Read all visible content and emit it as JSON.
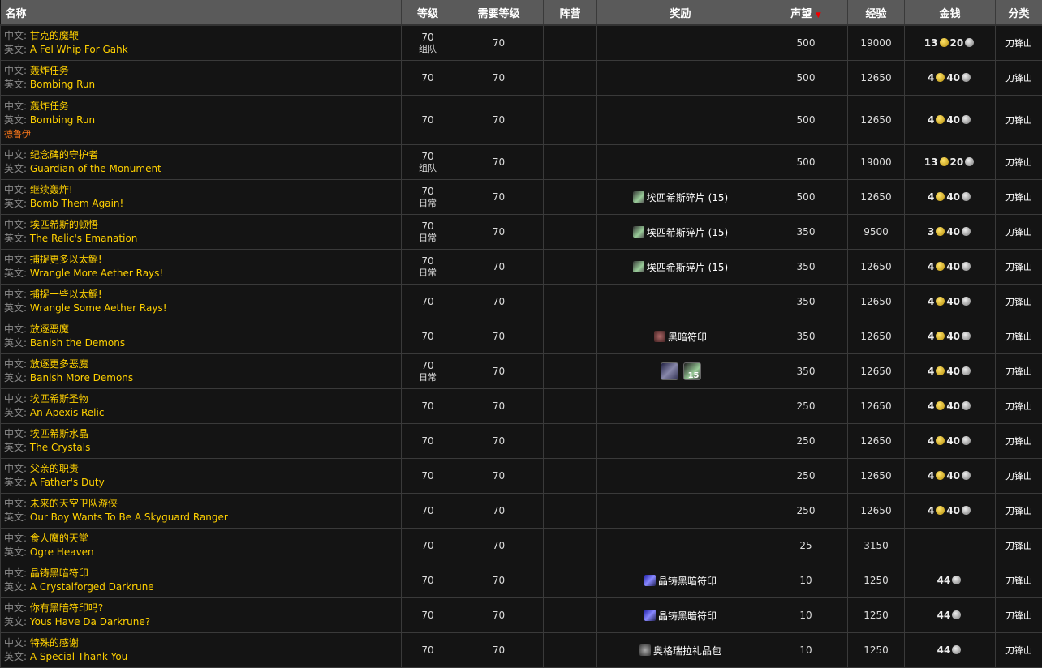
{
  "header": {
    "name": "名称",
    "level": "等级",
    "req_level": "需要等级",
    "faction": "阵营",
    "reward": "奖励",
    "reputation": "声望",
    "sort_icon": "▼",
    "xp": "经验",
    "money": "金钱",
    "category": "分类"
  },
  "labels": {
    "cn": "中文:",
    "en": "英文:"
  },
  "rows": [
    {
      "cn": "甘克的魔鞭",
      "en": "A Fel Whip For Gahk",
      "level": "70",
      "tag": "组队",
      "req": "70",
      "reward": "",
      "rep": "500",
      "xp": "19000",
      "gold": "13",
      "silver": "20",
      "cat": "刀锋山"
    },
    {
      "cn": "轰炸任务",
      "en": "Bombing Run",
      "level": "70",
      "tag": "",
      "req": "70",
      "reward": "",
      "rep": "500",
      "xp": "12650",
      "gold": "4",
      "silver": "40",
      "cat": "刀锋山"
    },
    {
      "cn": "轰炸任务",
      "en": "Bombing Run",
      "faction": "德鲁伊",
      "level": "70",
      "tag": "",
      "req": "70",
      "reward": "",
      "rep": "500",
      "xp": "12650",
      "gold": "4",
      "silver": "40",
      "cat": "刀锋山"
    },
    {
      "cn": "纪念碑的守护者",
      "en": "Guardian of the Monument",
      "level": "70",
      "tag": "组队",
      "req": "70",
      "reward": "",
      "rep": "500",
      "xp": "19000",
      "gold": "13",
      "silver": "20",
      "cat": "刀锋山"
    },
    {
      "cn": "继续轰炸!",
      "en": "Bomb Them Again!",
      "level": "70",
      "tag": "日常",
      "req": "70",
      "reward": "埃匹希斯碎片 (15)",
      "reward_icon": "shard",
      "rep": "500",
      "xp": "12650",
      "gold": "4",
      "silver": "40",
      "cat": "刀锋山"
    },
    {
      "cn": "埃匹希斯的顿悟",
      "en": "The Relic's Emanation",
      "level": "70",
      "tag": "日常",
      "req": "70",
      "reward": "埃匹希斯碎片 (15)",
      "reward_icon": "shard",
      "rep": "350",
      "xp": "9500",
      "gold": "3",
      "silver": "40",
      "cat": "刀锋山"
    },
    {
      "cn": "捕捉更多以太鳐!",
      "en": "Wrangle More Aether Rays!",
      "level": "70",
      "tag": "日常",
      "req": "70",
      "reward": "埃匹希斯碎片 (15)",
      "reward_icon": "shard",
      "rep": "350",
      "xp": "12650",
      "gold": "4",
      "silver": "40",
      "cat": "刀锋山"
    },
    {
      "cn": "捕捉一些以太鳐!",
      "en": "Wrangle Some Aether Rays!",
      "level": "70",
      "tag": "",
      "req": "70",
      "reward": "",
      "rep": "350",
      "xp": "12650",
      "gold": "4",
      "silver": "40",
      "cat": "刀锋山"
    },
    {
      "cn": "放逐恶魔",
      "en": "Banish the Demons",
      "level": "70",
      "tag": "",
      "req": "70",
      "reward": "黑暗符印",
      "reward_icon": "rune",
      "rep": "350",
      "xp": "12650",
      "gold": "4",
      "silver": "40",
      "cat": "刀锋山"
    },
    {
      "cn": "放逐更多恶魔",
      "en": "Banish More Demons",
      "level": "70",
      "tag": "日常",
      "req": "70",
      "reward": "",
      "reward_icons": true,
      "icon_count": "15",
      "rep": "350",
      "xp": "12650",
      "gold": "4",
      "silver": "40",
      "cat": "刀锋山"
    },
    {
      "cn": "埃匹希斯圣物",
      "en": "An Apexis Relic",
      "level": "70",
      "tag": "",
      "req": "70",
      "reward": "",
      "rep": "250",
      "xp": "12650",
      "gold": "4",
      "silver": "40",
      "cat": "刀锋山"
    },
    {
      "cn": "埃匹希斯水晶",
      "en": "The Crystals",
      "level": "70",
      "tag": "",
      "req": "70",
      "reward": "",
      "rep": "250",
      "xp": "12650",
      "gold": "4",
      "silver": "40",
      "cat": "刀锋山"
    },
    {
      "cn": "父亲的职责",
      "en": "A Father's Duty",
      "level": "70",
      "tag": "",
      "req": "70",
      "reward": "",
      "rep": "250",
      "xp": "12650",
      "gold": "4",
      "silver": "40",
      "cat": "刀锋山"
    },
    {
      "cn": "未来的天空卫队游侠",
      "en": "Our Boy Wants To Be A Skyguard Ranger",
      "level": "70",
      "tag": "",
      "req": "70",
      "reward": "",
      "rep": "250",
      "xp": "12650",
      "gold": "4",
      "silver": "40",
      "cat": "刀锋山"
    },
    {
      "cn": "食人魔的天堂",
      "en": "Ogre Heaven",
      "level": "70",
      "tag": "",
      "req": "70",
      "reward": "",
      "rep": "25",
      "xp": "3150",
      "gold": "",
      "silver": "",
      "cat": "刀锋山"
    },
    {
      "cn": "晶铸黑暗符印",
      "en": "A Crystalforged Darkrune",
      "level": "70",
      "tag": "",
      "req": "70",
      "reward": "晶铸黑暗符印",
      "reward_icon": "crystal",
      "rep": "10",
      "xp": "1250",
      "gold": "",
      "silver": "44",
      "cat": "刀锋山"
    },
    {
      "cn": "你有黑暗符印吗?",
      "en": "Yous Have Da Darkrune?",
      "level": "70",
      "tag": "",
      "req": "70",
      "reward": "晶铸黑暗符印",
      "reward_icon": "crystal",
      "rep": "10",
      "xp": "1250",
      "gold": "",
      "silver": "44",
      "cat": "刀锋山"
    },
    {
      "cn": "特殊的感谢",
      "en": "A Special Thank You",
      "level": "70",
      "tag": "",
      "req": "70",
      "reward": "奥格瑞拉礼品包",
      "reward_icon": "bag",
      "rep": "10",
      "xp": "1250",
      "gold": "",
      "silver": "44",
      "cat": "刀锋山"
    }
  ]
}
